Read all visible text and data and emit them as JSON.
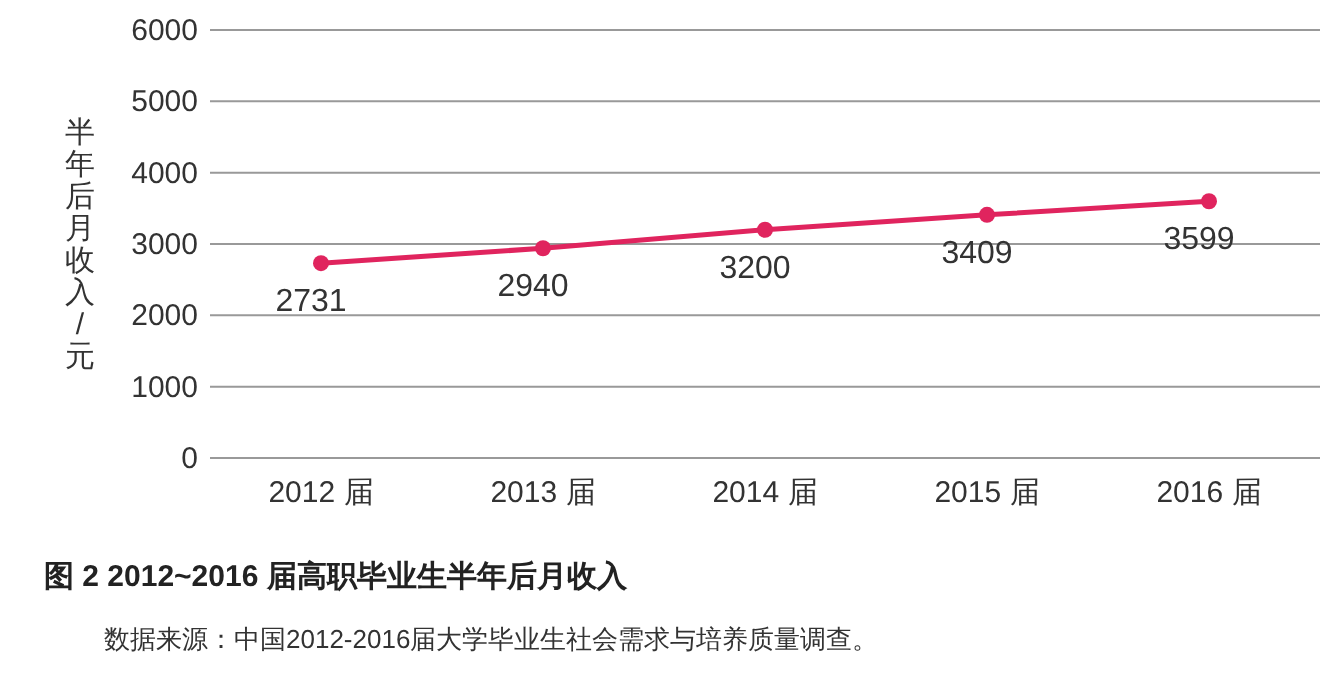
{
  "chart_data": {
    "type": "line",
    "title": "图 2   2012~2016 届高职毕业生半年后月收入",
    "ylabel": "半年后月收入/元",
    "categories": [
      "2012 届",
      "2013 届",
      "2014 届",
      "2015 届",
      "2016 届"
    ],
    "series": [
      {
        "color": "#e0245e",
        "values": [
          2731,
          2940,
          3200,
          3409,
          3599
        ]
      }
    ],
    "ylim": [
      0,
      6000
    ],
    "yticks": [
      0,
      1000,
      2000,
      3000,
      4000,
      5000,
      6000
    ],
    "grid": "y",
    "marker": "circle",
    "data_labels": true,
    "annotations": [
      "数据来源：中国2012-2016届大学毕业生社会需求与培养质量调查。"
    ]
  }
}
